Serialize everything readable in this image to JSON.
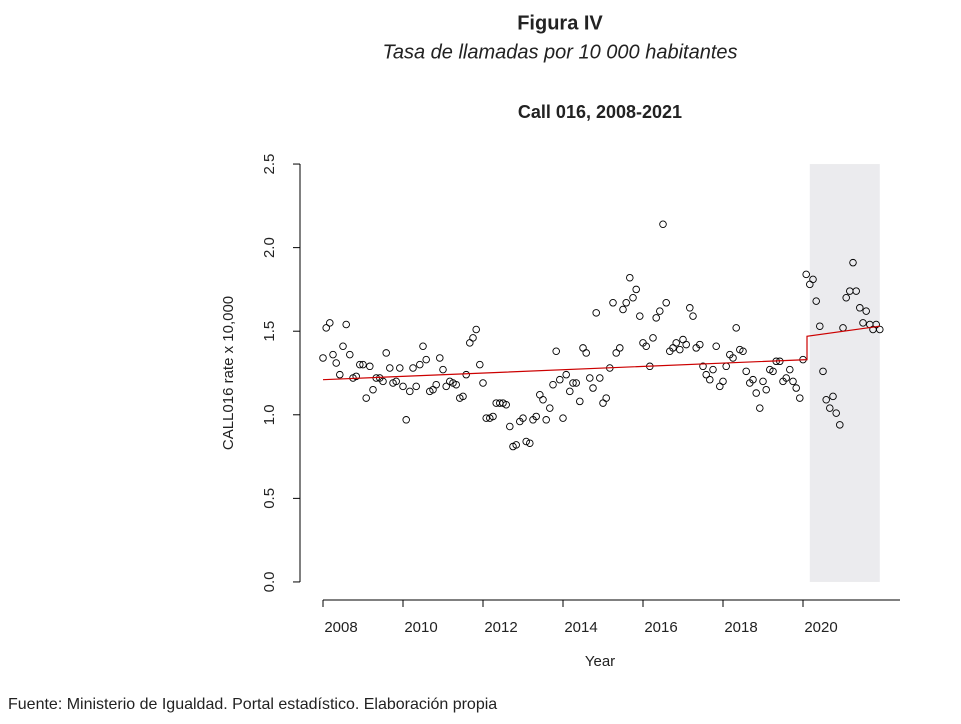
{
  "chart_data": {
    "type": "scatter",
    "figure_title": "Figura IV",
    "subtitle": "Tasa de llamadas por 10 000 habitantes",
    "title": "Call 016, 2008-2021",
    "xlabel": "Year",
    "ylabel": "CALL016 rate x 10,000",
    "source": "Fuente: Ministerio de Igualdad. Portal estadístico. Elaboración propia",
    "xlim": [
      2007.425,
      2022.425
    ],
    "ylim": [
      -0.108,
      2.584
    ],
    "xticks": [
      2008,
      2010,
      2012,
      2014,
      2016,
      2018,
      2020
    ],
    "yticks": [
      {
        "value": 0,
        "label": "0.0"
      },
      0.5,
      {
        "value": 1,
        "label": "1.0"
      },
      1.5,
      {
        "value": 2,
        "label": "2.0"
      },
      2.5
    ],
    "color": "#000000",
    "x": [
      2008.0,
      2008.08,
      2008.17,
      2008.25,
      2008.33,
      2008.42,
      2008.5,
      2008.58,
      2008.67,
      2008.75,
      2008.83,
      2008.92,
      2009.0,
      2009.08,
      2009.17,
      2009.25,
      2009.33,
      2009.42,
      2009.5,
      2009.58,
      2009.67,
      2009.75,
      2009.83,
      2009.92,
      2010.0,
      2010.08,
      2010.17,
      2010.25,
      2010.33,
      2010.42,
      2010.5,
      2010.58,
      2010.67,
      2010.75,
      2010.83,
      2010.92,
      2011.0,
      2011.08,
      2011.17,
      2011.25,
      2011.33,
      2011.42,
      2011.5,
      2011.58,
      2011.67,
      2011.75,
      2011.83,
      2011.92,
      2012.0,
      2012.08,
      2012.17,
      2012.25,
      2012.33,
      2012.42,
      2012.5,
      2012.58,
      2012.67,
      2012.75,
      2012.83,
      2012.92,
      2013.0,
      2013.08,
      2013.17,
      2013.25,
      2013.33,
      2013.42,
      2013.5,
      2013.58,
      2013.67,
      2013.75,
      2013.83,
      2013.92,
      2014.0,
      2014.08,
      2014.17,
      2014.25,
      2014.33,
      2014.42,
      2014.5,
      2014.58,
      2014.67,
      2014.75,
      2014.83,
      2014.92,
      2015.0,
      2015.08,
      2015.17,
      2015.25,
      2015.33,
      2015.42,
      2015.5,
      2015.58,
      2015.67,
      2015.75,
      2015.83,
      2015.92,
      2016.0,
      2016.08,
      2016.17,
      2016.25,
      2016.33,
      2016.42,
      2016.5,
      2016.58,
      2016.67,
      2016.75,
      2016.83,
      2016.92,
      2017.0,
      2017.08,
      2017.17,
      2017.25,
      2017.33,
      2017.42,
      2017.5,
      2017.58,
      2017.67,
      2017.75,
      2017.83,
      2017.92,
      2018.0,
      2018.08,
      2018.17,
      2018.25,
      2018.33,
      2018.42,
      2018.5,
      2018.58,
      2018.67,
      2018.75,
      2018.83,
      2018.92,
      2019.0,
      2019.08,
      2019.17,
      2019.25,
      2019.33,
      2019.42,
      2019.5,
      2019.58,
      2019.67,
      2019.75,
      2019.83,
      2019.92,
      2020.0,
      2020.08,
      2020.17,
      2020.25,
      2020.33,
      2020.42,
      2020.5,
      2020.58,
      2020.67,
      2020.75,
      2020.83,
      2020.92,
      2021.0,
      2021.08,
      2021.17,
      2021.25,
      2021.33,
      2021.42,
      2021.5,
      2021.58,
      2021.67,
      2021.75,
      2021.83,
      2021.92
    ],
    "values": [
      1.34,
      1.52,
      1.55,
      1.36,
      1.31,
      1.24,
      1.41,
      1.54,
      1.36,
      1.22,
      1.23,
      1.3,
      1.3,
      1.1,
      1.29,
      1.15,
      1.22,
      1.22,
      1.2,
      1.37,
      1.28,
      1.19,
      1.2,
      1.28,
      1.17,
      0.97,
      1.14,
      1.28,
      1.17,
      1.3,
      1.41,
      1.33,
      1.14,
      1.15,
      1.18,
      1.34,
      1.27,
      1.17,
      1.2,
      1.19,
      1.18,
      1.1,
      1.11,
      1.24,
      1.43,
      1.46,
      1.51,
      1.3,
      1.19,
      0.98,
      0.98,
      0.99,
      1.07,
      1.07,
      1.07,
      1.06,
      0.93,
      0.81,
      0.82,
      0.96,
      0.98,
      0.84,
      0.83,
      0.97,
      0.99,
      1.12,
      1.09,
      0.97,
      1.04,
      1.18,
      1.38,
      1.21,
      0.98,
      1.24,
      1.14,
      1.19,
      1.19,
      1.08,
      1.4,
      1.37,
      1.22,
      1.16,
      1.61,
      1.22,
      1.07,
      1.1,
      1.28,
      1.67,
      1.37,
      1.4,
      1.63,
      1.67,
      1.82,
      1.7,
      1.75,
      1.59,
      1.43,
      1.41,
      1.29,
      1.46,
      1.58,
      1.62,
      2.14,
      1.67,
      1.38,
      1.4,
      1.43,
      1.39,
      1.45,
      1.42,
      1.64,
      1.59,
      1.4,
      1.42,
      1.29,
      1.24,
      1.21,
      1.27,
      1.41,
      1.17,
      1.2,
      1.29,
      1.36,
      1.34,
      1.52,
      1.39,
      1.38,
      1.26,
      1.19,
      1.21,
      1.13,
      1.04,
      1.2,
      1.15,
      1.27,
      1.26,
      1.32,
      1.32,
      1.2,
      1.22,
      1.27,
      1.2,
      1.16,
      1.1,
      1.33,
      1.84,
      1.78,
      1.81,
      1.68,
      1.53,
      1.26,
      1.09,
      1.04,
      1.11,
      1.01,
      0.94,
      1.52,
      1.7,
      1.74,
      1.91,
      1.74,
      1.64,
      1.55,
      1.62,
      1.54,
      1.51,
      1.54,
      1.51
    ],
    "trend": {
      "x": [
        2008,
        2020.1,
        2020.1,
        2021.92
      ],
      "values": [
        1.21,
        1.33,
        1.47,
        1.53
      ],
      "color": "#cc0000"
    },
    "shaded_region": {
      "xlim": [
        2020.17,
        2021.92
      ],
      "ylim": [
        0,
        2.5
      ],
      "color": "#ebebee"
    }
  }
}
